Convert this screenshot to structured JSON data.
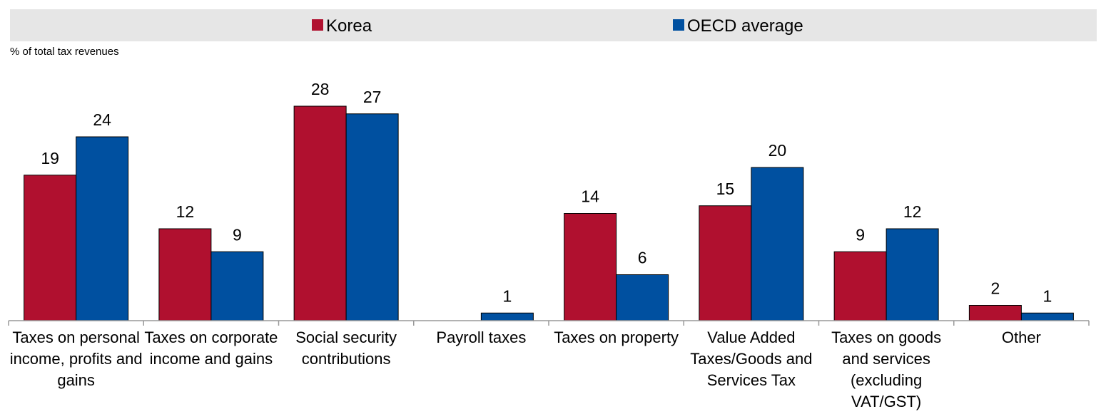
{
  "chart_data": {
    "type": "bar",
    "unit_label": "% of total tax revenues",
    "legend_position": "top",
    "grid": false,
    "ylim": [
      0,
      30
    ],
    "categories": [
      [
        "Taxes on personal",
        "income, profits and",
        "gains"
      ],
      [
        "Taxes on corporate",
        "income and gains"
      ],
      [
        "Social security",
        "contributions"
      ],
      [
        "Payroll taxes"
      ],
      [
        "Taxes on property"
      ],
      [
        "Value Added",
        "Taxes/Goods and",
        "Services Tax"
      ],
      [
        "Taxes on goods",
        "and services",
        "(excluding",
        "VAT/GST)"
      ],
      [
        "Other"
      ]
    ],
    "series": [
      {
        "name": "Korea",
        "color": "#b0102f",
        "values": [
          19,
          12,
          28,
          0,
          14,
          15,
          9,
          2
        ],
        "labels": [
          "19",
          "12",
          "28",
          "",
          "14",
          "15",
          "9",
          "2"
        ]
      },
      {
        "name": "OECD average",
        "color": "#0050a0",
        "values": [
          24,
          9,
          27,
          1,
          6,
          20,
          12,
          1
        ],
        "labels": [
          "24",
          "9",
          "27",
          "1",
          "6",
          "20",
          "12",
          "1"
        ]
      }
    ]
  }
}
